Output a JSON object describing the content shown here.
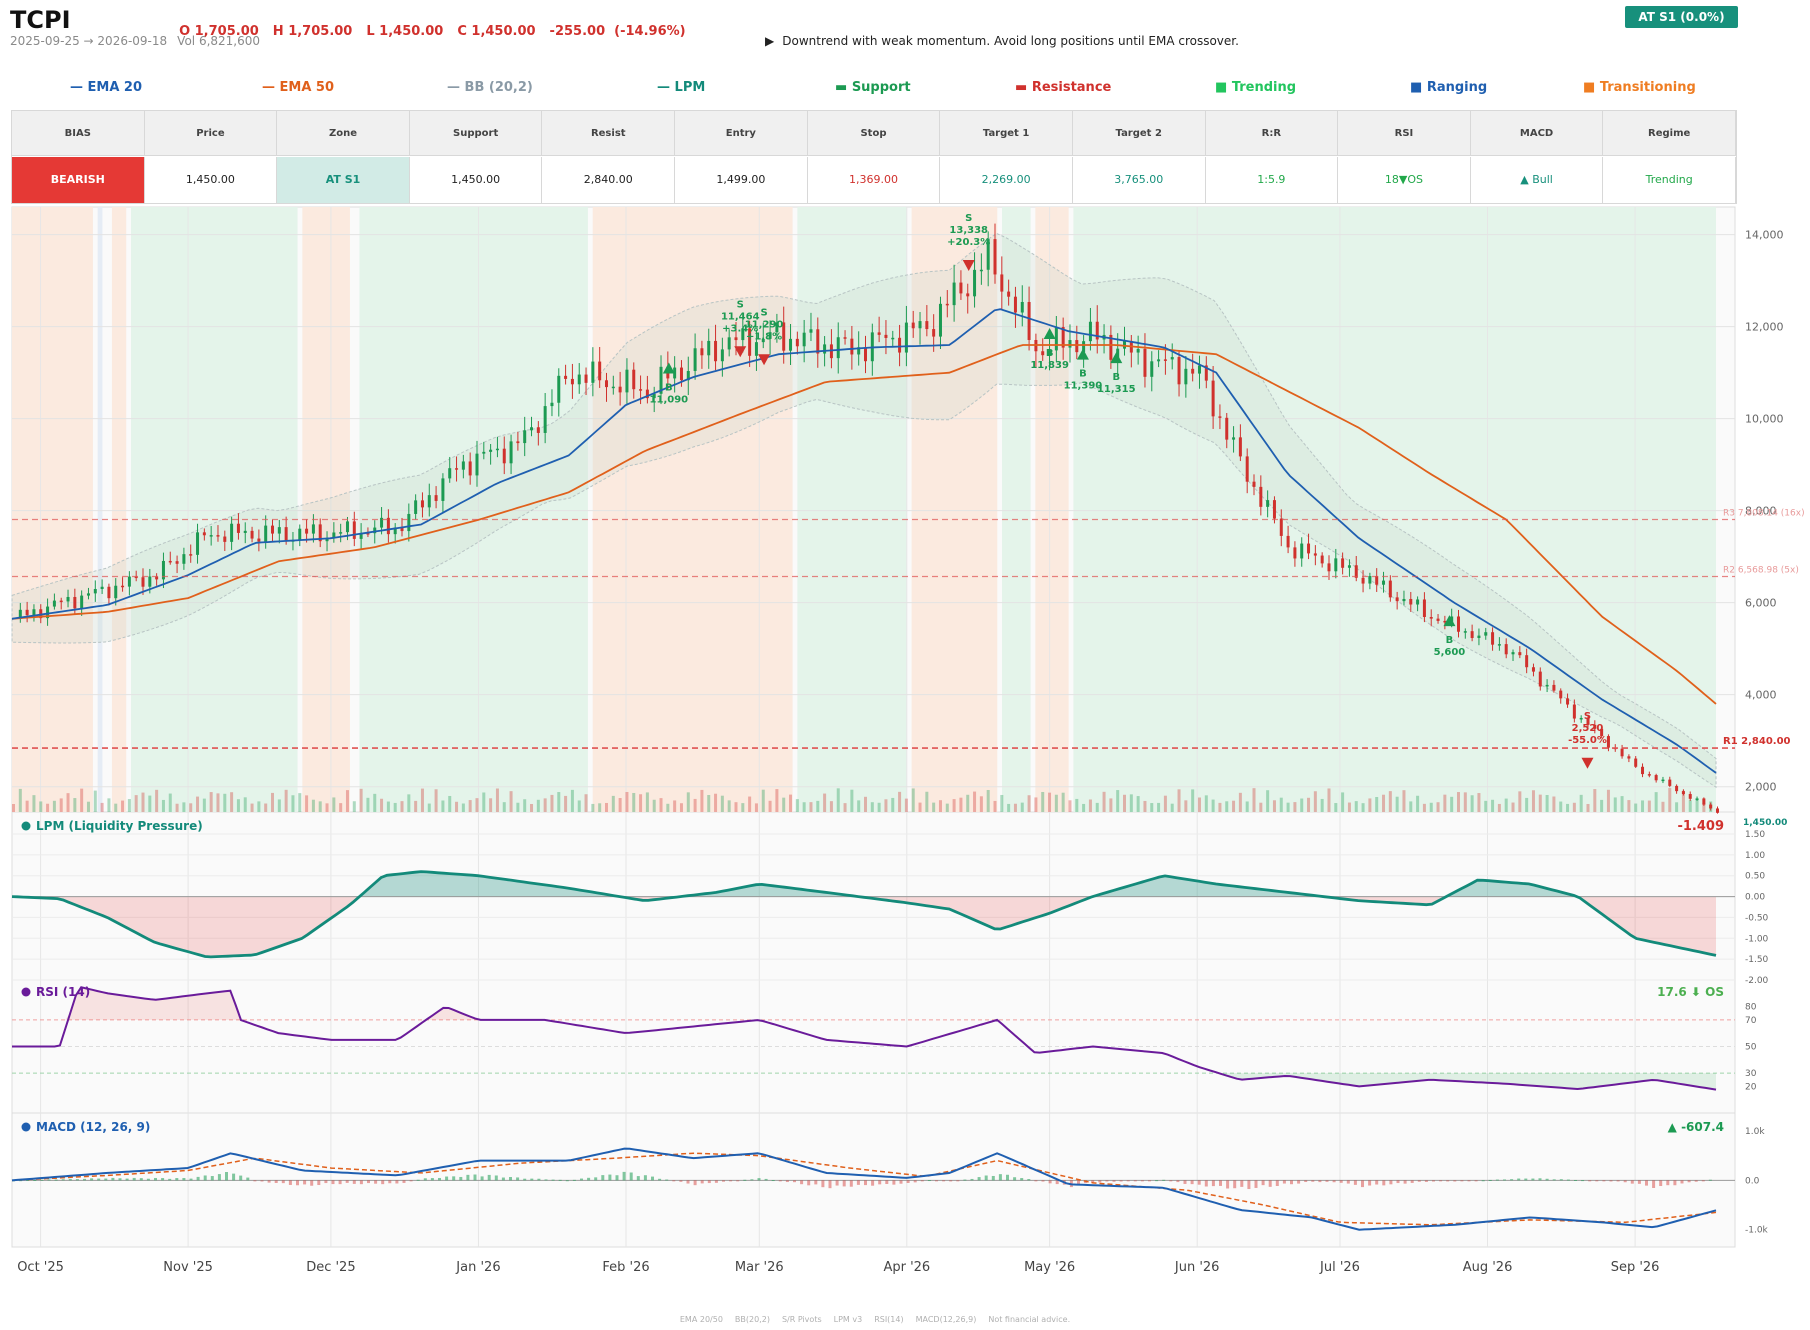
{
  "header": {
    "ticker": "TCPI",
    "ohlc": [
      "O 1,705.00",
      "H 1,705.00",
      "L 1,450.00",
      "C 1,450.00",
      "-255.00  (-14.96%)"
    ],
    "date_range": "2025-09-25 → 2026-09-18",
    "volume": "Vol 6,821,600",
    "advice_arrow": "▶",
    "advice": "Downtrend with weak momentum. Avoid long positions until EMA crossover.",
    "zone_badge": "AT S1  (0.0%)"
  },
  "legend": [
    {
      "glyph": "—",
      "label": "EMA 20",
      "color": "#1f5fb0"
    },
    {
      "glyph": "—",
      "label": "EMA 50",
      "color": "#e0601b"
    },
    {
      "glyph": "—",
      "label": "BB (20,2)",
      "color": "#8a9aa6"
    },
    {
      "glyph": "—",
      "label": "LPM",
      "color": "#138a7a"
    },
    {
      "glyph": "▬",
      "label": "Support",
      "color": "#1c9a52"
    },
    {
      "glyph": "▬",
      "label": "Resistance",
      "color": "#d0312d"
    },
    {
      "glyph": "■",
      "label": "Trending",
      "color": "#22c55e"
    },
    {
      "glyph": "■",
      "label": "Ranging",
      "color": "#1f5fb0"
    },
    {
      "glyph": "■",
      "label": "Transitioning",
      "color": "#ef7d22"
    }
  ],
  "summary_table": {
    "headers": [
      "BIAS",
      "Price",
      "Zone",
      "Support",
      "Resist",
      "Entry",
      "Stop",
      "Target 1",
      "Target 2",
      "R:R",
      "RSI",
      "MACD",
      "Regime"
    ],
    "values": [
      "BEARISH",
      "1,450.00",
      "AT S1",
      "1,450.00",
      "2,840.00",
      "1,499.00",
      "1,369.00",
      "2,269.00",
      "3,765.00",
      "1:5.9",
      "18▼OS",
      "▲ Bull",
      "Trending"
    ],
    "colors": [
      "#ffffff",
      "#222222",
      "#17907c",
      "#222222",
      "#222222",
      "#222222",
      "#d0312d",
      "#17907c",
      "#17907c",
      "#22a84a",
      "#22a84a",
      "#17907c",
      "#22a84a"
    ],
    "backgrounds": [
      "#e53935",
      "#ffffff",
      "#d2ebe6",
      "#ffffff",
      "#ffffff",
      "#ffffff",
      "#ffffff",
      "#ffffff",
      "#ffffff",
      "#ffffff",
      "#ffffff",
      "#ffffff",
      "#ffffff"
    ]
  },
  "chart_data": [
    {
      "type": "candlestick",
      "title": "",
      "y_ticks": [
        2000,
        4000,
        6000,
        8000,
        10000,
        12000,
        14000
      ],
      "ylim": [
        1450,
        14600
      ],
      "x_ticks": [
        "Oct '25",
        "Nov '25",
        "Dec '25",
        "Jan '26",
        "Feb '26",
        "Mar '26",
        "Apr '26",
        "May '26",
        "Jun '26",
        "Jul '26",
        "Aug '26",
        "Sep '26"
      ],
      "x_tick_dates": [
        "2025-10-01",
        "2025-11-01",
        "2025-12-01",
        "2026-01-01",
        "2026-02-01",
        "2026-03-01",
        "2026-04-01",
        "2026-05-01",
        "2026-06-01",
        "2026-07-01",
        "2026-08-01",
        "2026-09-01"
      ],
      "date_start": "2025-09-25",
      "date_end": "2026-09-18",
      "close_path": [
        [
          "2025-09-25",
          5650
        ],
        [
          "2025-10-05",
          6000
        ],
        [
          "2025-10-15",
          6300
        ],
        [
          "2025-10-25",
          6600
        ],
        [
          "2025-11-05",
          7500
        ],
        [
          "2025-11-15",
          7500
        ],
        [
          "2025-12-01",
          7500
        ],
        [
          "2025-12-15",
          7650
        ],
        [
          "2025-12-28",
          9000
        ],
        [
          "2026-01-10",
          9500
        ],
        [
          "2026-01-20",
          11000
        ],
        [
          "2026-02-05",
          10600
        ],
        [
          "2026-02-20",
          11600
        ],
        [
          "2026-03-05",
          11800
        ],
        [
          "2026-03-20",
          11500
        ],
        [
          "2026-04-05",
          12000
        ],
        [
          "2026-04-18",
          13500
        ],
        [
          "2026-04-28",
          11500
        ],
        [
          "2026-05-10",
          11800
        ],
        [
          "2026-05-20",
          11300
        ],
        [
          "2026-06-01",
          11000
        ],
        [
          "2026-06-10",
          9000
        ],
        [
          "2026-06-20",
          7200
        ],
        [
          "2026-07-05",
          6600
        ],
        [
          "2026-07-20",
          5700
        ],
        [
          "2026-08-05",
          5000
        ],
        [
          "2026-08-20",
          3500
        ],
        [
          "2026-09-01",
          2400
        ],
        [
          "2026-09-18",
          1450
        ]
      ],
      "ema20": [
        [
          "2025-09-25",
          5650
        ],
        [
          "2025-10-15",
          5950
        ],
        [
          "2025-11-01",
          6600
        ],
        [
          "2025-11-15",
          7300
        ],
        [
          "2025-12-01",
          7400
        ],
        [
          "2025-12-20",
          7700
        ],
        [
          "2026-01-05",
          8600
        ],
        [
          "2026-01-20",
          9200
        ],
        [
          "2026-02-01",
          10300
        ],
        [
          "2026-02-15",
          10900
        ],
        [
          "2026-03-05",
          11400
        ],
        [
          "2026-03-25",
          11550
        ],
        [
          "2026-04-10",
          11600
        ],
        [
          "2026-04-20",
          12400
        ],
        [
          "2026-05-05",
          11900
        ],
        [
          "2026-05-25",
          11550
        ],
        [
          "2026-06-05",
          11000
        ],
        [
          "2026-06-20",
          8800
        ],
        [
          "2026-07-05",
          7400
        ],
        [
          "2026-07-25",
          6000
        ],
        [
          "2026-08-10",
          5000
        ],
        [
          "2026-08-25",
          3900
        ],
        [
          "2026-09-10",
          2900
        ],
        [
          "2026-09-18",
          2300
        ]
      ],
      "ema50": [
        [
          "2025-09-25",
          5650
        ],
        [
          "2025-10-15",
          5800
        ],
        [
          "2025-11-01",
          6100
        ],
        [
          "2025-11-20",
          6900
        ],
        [
          "2025-12-10",
          7200
        ],
        [
          "2026-01-01",
          7800
        ],
        [
          "2026-01-20",
          8400
        ],
        [
          "2026-02-05",
          9300
        ],
        [
          "2026-02-25",
          10100
        ],
        [
          "2026-03-15",
          10800
        ],
        [
          "2026-04-10",
          11000
        ],
        [
          "2026-04-25",
          11600
        ],
        [
          "2026-05-15",
          11600
        ],
        [
          "2026-06-05",
          11400
        ],
        [
          "2026-06-20",
          10600
        ],
        [
          "2026-07-05",
          9800
        ],
        [
          "2026-07-20",
          8800
        ],
        [
          "2026-08-05",
          7800
        ],
        [
          "2026-08-25",
          5700
        ],
        [
          "2026-09-10",
          4500
        ],
        [
          "2026-09-18",
          3800
        ]
      ],
      "resistance_levels": [
        {
          "label": "R3 7,808.14 (16x)",
          "value": 7808
        },
        {
          "label": "R2 6,568.98 (5x)",
          "value": 6569
        },
        {
          "label": "R1 2,840.00",
          "value": 2840
        }
      ],
      "last_price_label": "1,450.00",
      "regimes": [
        [
          "2025-09-25",
          "2025-10-12",
          "transition"
        ],
        [
          "2025-10-13",
          "2025-10-14",
          "ranging"
        ],
        [
          "2025-10-16",
          "2025-10-19",
          "transition"
        ],
        [
          "2025-10-20",
          "2025-11-24",
          "trending"
        ],
        [
          "2025-11-25",
          "2025-12-05",
          "transition"
        ],
        [
          "2025-12-07",
          "2026-01-24",
          "trending"
        ],
        [
          "2026-01-25",
          "2026-03-08",
          "transition"
        ],
        [
          "2026-03-09",
          "2026-04-01",
          "trending"
        ],
        [
          "2026-04-02",
          "2026-04-20",
          "transition"
        ],
        [
          "2026-04-21",
          "2026-04-27",
          "trending"
        ],
        [
          "2026-04-28",
          "2026-05-05",
          "transition"
        ],
        [
          "2026-05-06",
          "2026-09-18",
          "trending"
        ]
      ],
      "signals": [
        {
          "date": "2026-02-10",
          "side": "B",
          "price_label": "11,090",
          "value": 11090
        },
        {
          "date": "2026-02-25",
          "side": "S",
          "price_label": "11,464",
          "pct": "+3.4%",
          "value": 11464
        },
        {
          "date": "2026-03-02",
          "side": "S",
          "price_label": "11,290",
          "pct": "+1.8%",
          "value": 11290
        },
        {
          "date": "2026-04-14",
          "side": "S",
          "price_label": "13,338",
          "pct": "+20.3%",
          "value": 13338
        },
        {
          "date": "2026-05-01",
          "side": "B",
          "price_label": "11,839",
          "value": 11839
        },
        {
          "date": "2026-05-08",
          "side": "B",
          "price_label": "11,390",
          "value": 11390
        },
        {
          "date": "2026-05-15",
          "side": "B",
          "price_label": "11,315",
          "value": 11315
        },
        {
          "date": "2026-07-24",
          "side": "B",
          "price_label": "5,600",
          "value": 5600
        },
        {
          "date": "2026-08-22",
          "side": "S",
          "price_label": "2,520",
          "pct": "-55.0%",
          "value": 2520
        }
      ]
    },
    {
      "type": "area",
      "title": "LPM (Liquidity Pressure)",
      "current_label": "-1.409",
      "y_ticks": [
        1.5,
        1.0,
        0.5,
        0.0,
        -0.5,
        -1.0,
        -1.5,
        -2.0
      ],
      "y_tick_labels": [
        "1.50",
        "1.00",
        "0.50",
        "0.00",
        "-0.50",
        "-1.00",
        "-1.50",
        "-2.00"
      ],
      "ylim": [
        -2.0,
        1.5
      ],
      "points": [
        [
          "2025-09-25",
          0.0
        ],
        [
          "2025-10-05",
          -0.05
        ],
        [
          "2025-10-15",
          -0.5
        ],
        [
          "2025-10-25",
          -1.1
        ],
        [
          "2025-11-05",
          -1.45
        ],
        [
          "2025-11-15",
          -1.4
        ],
        [
          "2025-11-25",
          -1.0
        ],
        [
          "2025-12-05",
          -0.2
        ],
        [
          "2025-12-12",
          0.5
        ],
        [
          "2025-12-20",
          0.6
        ],
        [
          "2026-01-01",
          0.5
        ],
        [
          "2026-01-20",
          0.2
        ],
        [
          "2026-02-05",
          -0.1
        ],
        [
          "2026-02-20",
          0.1
        ],
        [
          "2026-03-01",
          0.3
        ],
        [
          "2026-03-15",
          0.1
        ],
        [
          "2026-04-01",
          -0.15
        ],
        [
          "2026-04-10",
          -0.3
        ],
        [
          "2026-04-20",
          -0.8
        ],
        [
          "2026-05-01",
          -0.4
        ],
        [
          "2026-05-10",
          0.0
        ],
        [
          "2026-05-25",
          0.5
        ],
        [
          "2026-06-05",
          0.3
        ],
        [
          "2026-06-20",
          0.1
        ],
        [
          "2026-07-05",
          -0.1
        ],
        [
          "2026-07-20",
          -0.2
        ],
        [
          "2026-07-30",
          0.4
        ],
        [
          "2026-08-10",
          0.3
        ],
        [
          "2026-08-20",
          0.0
        ],
        [
          "2026-09-01",
          -1.0
        ],
        [
          "2026-09-18",
          -1.41
        ]
      ]
    },
    {
      "type": "line",
      "title": "RSI (14)",
      "current_label": "17.6 ⬇ OS",
      "y_ticks": [
        80,
        70,
        50,
        30,
        20
      ],
      "ylim": [
        0,
        100
      ],
      "overbought": 70,
      "oversold": 30,
      "points": [
        [
          "2025-09-25",
          50
        ],
        [
          "2025-10-05",
          50
        ],
        [
          "2025-10-09",
          95
        ],
        [
          "2025-10-15",
          90
        ],
        [
          "2025-10-25",
          85
        ],
        [
          "2025-11-05",
          90
        ],
        [
          "2025-11-10",
          92
        ],
        [
          "2025-11-12",
          70
        ],
        [
          "2025-11-20",
          60
        ],
        [
          "2025-12-01",
          55
        ],
        [
          "2025-12-15",
          55
        ],
        [
          "2025-12-25",
          80
        ],
        [
          "2026-01-01",
          70
        ],
        [
          "2026-01-15",
          70
        ],
        [
          "2026-02-01",
          60
        ],
        [
          "2026-02-15",
          65
        ],
        [
          "2026-03-01",
          70
        ],
        [
          "2026-03-15",
          55
        ],
        [
          "2026-04-01",
          50
        ],
        [
          "2026-04-20",
          70
        ],
        [
          "2026-04-28",
          45
        ],
        [
          "2026-05-10",
          50
        ],
        [
          "2026-05-25",
          45
        ],
        [
          "2026-06-01",
          35
        ],
        [
          "2026-06-10",
          25
        ],
        [
          "2026-06-20",
          28
        ],
        [
          "2026-07-05",
          20
        ],
        [
          "2026-07-20",
          25
        ],
        [
          "2026-08-05",
          22
        ],
        [
          "2026-08-20",
          18
        ],
        [
          "2026-09-05",
          25
        ],
        [
          "2026-09-18",
          17.6
        ]
      ]
    },
    {
      "type": "line",
      "title": "MACD (12, 26, 9)",
      "current_label": "▲ -607.4",
      "y_ticks": [
        1000,
        0,
        -1000
      ],
      "y_tick_labels": [
        "1.0k",
        "0.0",
        "-1.0k"
      ],
      "ylim": [
        -1350,
        1000
      ],
      "macd": [
        [
          "2025-09-25",
          0
        ],
        [
          "2025-10-15",
          150
        ],
        [
          "2025-11-01",
          250
        ],
        [
          "2025-11-10",
          550
        ],
        [
          "2025-11-25",
          200
        ],
        [
          "2025-12-15",
          100
        ],
        [
          "2026-01-01",
          400
        ],
        [
          "2026-01-20",
          400
        ],
        [
          "2026-02-01",
          650
        ],
        [
          "2026-02-15",
          450
        ],
        [
          "2026-03-01",
          550
        ],
        [
          "2026-03-15",
          150
        ],
        [
          "2026-04-01",
          50
        ],
        [
          "2026-04-10",
          150
        ],
        [
          "2026-04-20",
          550
        ],
        [
          "2026-05-05",
          -80
        ],
        [
          "2026-05-25",
          -150
        ],
        [
          "2026-06-10",
          -600
        ],
        [
          "2026-06-25",
          -750
        ],
        [
          "2026-07-05",
          -1000
        ],
        [
          "2026-07-25",
          -900
        ],
        [
          "2026-08-10",
          -750
        ],
        [
          "2026-08-25",
          -850
        ],
        [
          "2026-09-05",
          -950
        ],
        [
          "2026-09-18",
          -607
        ]
      ],
      "signal": [
        [
          "2025-09-25",
          0
        ],
        [
          "2025-10-15",
          100
        ],
        [
          "2025-11-01",
          200
        ],
        [
          "2025-11-15",
          450
        ],
        [
          "2025-12-01",
          250
        ],
        [
          "2025-12-20",
          150
        ],
        [
          "2026-01-10",
          350
        ],
        [
          "2026-01-30",
          450
        ],
        [
          "2026-02-15",
          550
        ],
        [
          "2026-03-01",
          500
        ],
        [
          "2026-03-20",
          250
        ],
        [
          "2026-04-05",
          80
        ],
        [
          "2026-04-20",
          400
        ],
        [
          "2026-05-10",
          -50
        ],
        [
          "2026-05-30",
          -200
        ],
        [
          "2026-06-15",
          -500
        ],
        [
          "2026-07-01",
          -850
        ],
        [
          "2026-07-20",
          -900
        ],
        [
          "2026-08-10",
          -800
        ],
        [
          "2026-08-30",
          -850
        ],
        [
          "2026-09-18",
          -650
        ]
      ]
    }
  ],
  "footer": [
    "EMA 20/50",
    "BB(20,2)",
    "S/R Pivots",
    "LPM v3",
    "RSI(14)",
    "MACD(12,26,9)",
    "Not financial advice."
  ],
  "colors": {
    "ema20": "#1f5fb0",
    "ema50": "#e0601b",
    "bullish": "#1c9a52",
    "bearish": "#d0312d",
    "lpm": "#138a7a",
    "rsi": "#6a1b9a",
    "macd": "#1f5fb0",
    "signal_line": "#e0601b",
    "trending_band": "#e4f4ea",
    "transition_band": "#fbeadf",
    "ranging_band": "#e5ecf5"
  }
}
